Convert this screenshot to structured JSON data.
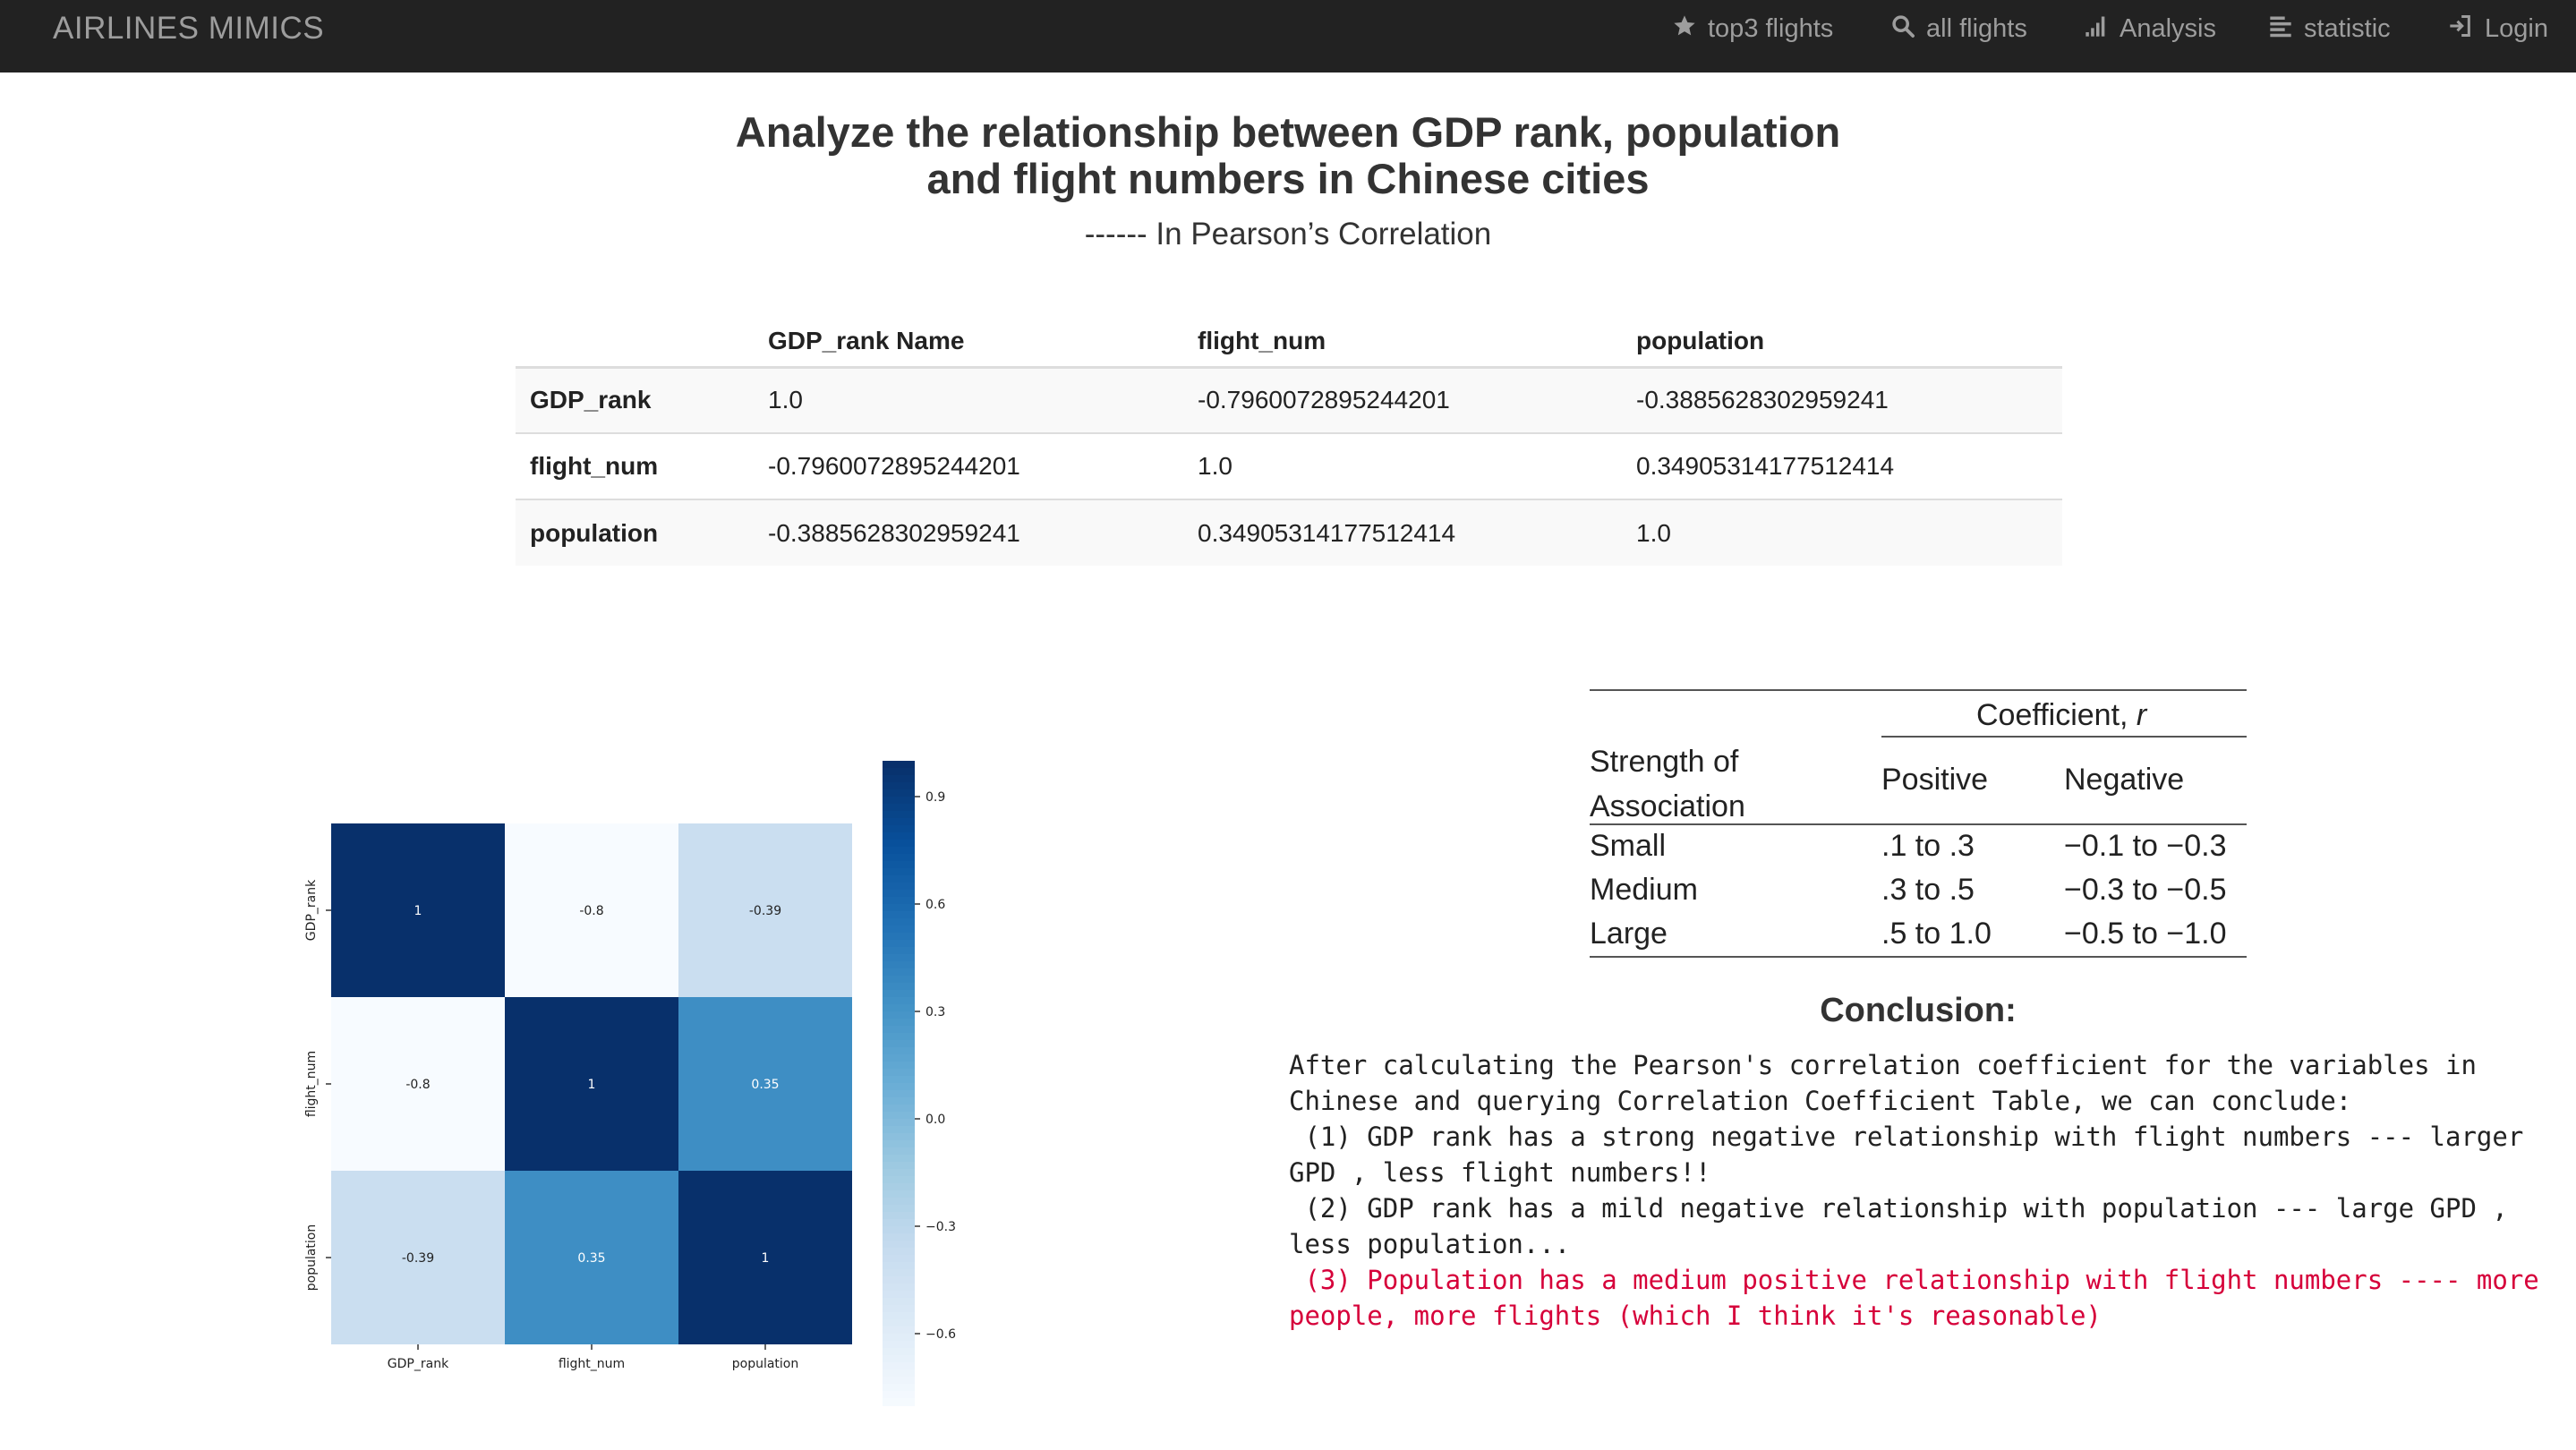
{
  "navbar": {
    "brand": "AIRLINES MIMICS",
    "items": [
      {
        "label": "top3 flights",
        "icon": "star-icon"
      },
      {
        "label": "all flights",
        "icon": "search-icon"
      },
      {
        "label": "Analysis",
        "icon": "signal-bars-icon"
      },
      {
        "label": "statistic",
        "icon": "align-left-icon"
      },
      {
        "label": "Login",
        "icon": "login-icon"
      }
    ]
  },
  "page": {
    "title_line1": "Analyze the relationship between GDP rank, population",
    "title_line2": "and flight numbers in Chinese cities",
    "subtitle": "------ In Pearson’s Correlation"
  },
  "corr_table": {
    "headers": [
      "",
      "GDP_rank Name",
      "flight_num",
      "population"
    ],
    "rows": [
      {
        "name": "GDP_rank",
        "cells": [
          "1.0",
          "-0.7960072895244201",
          "-0.3885628302959241"
        ]
      },
      {
        "name": "flight_num",
        "cells": [
          "-0.7960072895244201",
          "1.0",
          "0.34905314177512414"
        ]
      },
      {
        "name": "population",
        "cells": [
          "-0.3885628302959241",
          "0.34905314177512414",
          "1.0"
        ]
      }
    ]
  },
  "chart_data": {
    "type": "heatmap",
    "row_labels": [
      "GDP_rank",
      "flight_num",
      "population"
    ],
    "col_labels": [
      "GDP_rank",
      "flight_num",
      "population"
    ],
    "values": [
      [
        1,
        -0.8,
        -0.39
      ],
      [
        -0.8,
        1,
        0.35
      ],
      [
        -0.39,
        0.35,
        1
      ]
    ],
    "annotations": [
      [
        "1",
        "-0.8",
        "-0.39"
      ],
      [
        "-0.8",
        "1",
        "0.35"
      ],
      [
        "-0.39",
        "0.35",
        "1"
      ]
    ],
    "colorbar": {
      "colormap": "Blues",
      "vmin": -0.8,
      "vmax": 1.0,
      "ticks": [
        0.9,
        0.6,
        0.3,
        0.0,
        -0.3,
        -0.6
      ],
      "tick_labels": [
        "0.9",
        "0.6",
        "0.3",
        "0.0",
        "−0.3",
        "−0.6"
      ]
    }
  },
  "coef_table": {
    "header": "Coefficient, r",
    "header_main": "Coefficient, ",
    "header_var": "r",
    "strength_line1": "Strength of",
    "strength_line2": "Association",
    "positive_label": "Positive",
    "negative_label": "Negative",
    "rows": [
      {
        "strength": "Small",
        "positive": ".1 to .3",
        "negative": "−0.1 to −0.3"
      },
      {
        "strength": "Medium",
        "positive": ".3 to .5",
        "negative": "−0.3 to −0.5"
      },
      {
        "strength": "Large",
        "positive": ".5 to 1.0",
        "negative": "−0.5 to −1.0"
      }
    ]
  },
  "conclusion": {
    "title": "Conclusion:",
    "intro": "After calculating the Pearson's correlation coefficient for the variables in Chinese and querying Correlation Coefficient Table, we can conclude:",
    "point1": " (1) GDP rank has a strong negative relationship with flight numbers --- larger GPD , less flight numbers!!",
    "point2": " (2) GDP rank has a mild negative relationship with population --- large GPD , less population...",
    "point3": " (3) Population has a medium positive relationship with flight numbers ---- more people, more flights (which I think it's reasonable)"
  },
  "colors": {
    "navbar_bg": "#222222",
    "navbar_text": "#9d9d9d",
    "highlight_red": "#d6003a"
  }
}
